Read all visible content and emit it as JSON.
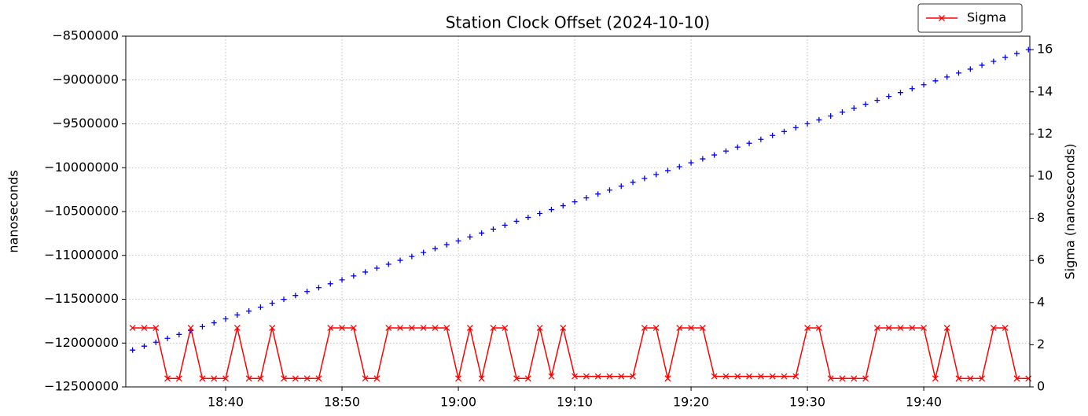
{
  "chart_data": {
    "type": "line",
    "title": "Station Clock Offset (2024-10-10)",
    "ylabel": "nanoseconds",
    "y2label": "Sigma (nanoseconds)",
    "x": [
      "18:32",
      "18:33",
      "18:34",
      "18:35",
      "18:36",
      "18:37",
      "18:38",
      "18:39",
      "18:40",
      "18:41",
      "18:42",
      "18:43",
      "18:44",
      "18:45",
      "18:46",
      "18:47",
      "18:48",
      "18:49",
      "18:50",
      "18:51",
      "18:52",
      "18:53",
      "18:54",
      "18:55",
      "18:56",
      "18:57",
      "18:58",
      "18:59",
      "19:00",
      "19:01",
      "19:02",
      "19:03",
      "19:04",
      "19:05",
      "19:06",
      "19:07",
      "19:08",
      "19:09",
      "19:10",
      "19:11",
      "19:12",
      "19:13",
      "19:14",
      "19:15",
      "19:16",
      "19:17",
      "19:18",
      "19:19",
      "19:20",
      "19:21",
      "19:22",
      "19:23",
      "19:24",
      "19:25",
      "19:26",
      "19:27",
      "19:28",
      "19:29",
      "19:30",
      "19:31",
      "19:32",
      "19:33",
      "19:34",
      "19:35",
      "19:36",
      "19:37",
      "19:38",
      "19:39",
      "19:40",
      "19:41",
      "19:42",
      "19:43",
      "19:44",
      "19:45",
      "19:46",
      "19:47",
      "19:48",
      "19:49"
    ],
    "series": [
      {
        "color": "#0000ff",
        "marker": "+",
        "line": false,
        "axis": "y",
        "values": [
          -12080000,
          -12035500,
          -11991000,
          -11946500,
          -11902000,
          -11857500,
          -11813000,
          -11768500,
          -11724000,
          -11679500,
          -11635000,
          -11590500,
          -11546000,
          -11501500,
          -11457000,
          -11412500,
          -11368000,
          -11323500,
          -11279000,
          -11234500,
          -11190000,
          -11145500,
          -11101000,
          -11056500,
          -11012000,
          -10967500,
          -10923000,
          -10878500,
          -10834000,
          -10789500,
          -10745000,
          -10700500,
          -10656000,
          -10611500,
          -10567000,
          -10522500,
          -10478000,
          -10433500,
          -10389000,
          -10344500,
          -10300000,
          -10255500,
          -10211000,
          -10166500,
          -10122000,
          -10077500,
          -10033000,
          -9988500,
          -9944000,
          -9899500,
          -9855000,
          -9810500,
          -9766000,
          -9721500,
          -9677000,
          -9632500,
          -9588000,
          -9543500,
          -9499000,
          -9454500,
          -9410000,
          -9365500,
          -9321000,
          -9276500,
          -9232000,
          -9187500,
          -9143000,
          -9098500,
          -9054000,
          -9009500,
          -8965000,
          -8920500,
          -8876000,
          -8831500,
          -8787000,
          -8742500,
          -8698000,
          -8653500
        ]
      },
      {
        "name": "Sigma",
        "color": "#ff0000",
        "marker": "x",
        "line": true,
        "axis": "y2",
        "values": [
          2.8,
          2.8,
          2.8,
          0.4,
          0.4,
          2.8,
          0.4,
          0.4,
          0.4,
          2.8,
          0.4,
          0.4,
          2.8,
          0.4,
          0.4,
          0.4,
          0.4,
          2.8,
          2.8,
          2.8,
          0.4,
          0.4,
          2.8,
          2.8,
          2.8,
          2.8,
          2.8,
          2.8,
          0.4,
          2.8,
          0.4,
          2.8,
          2.8,
          0.4,
          0.4,
          2.8,
          0.5,
          2.8,
          0.5,
          0.5,
          0.5,
          0.5,
          0.5,
          0.5,
          2.8,
          2.8,
          0.4,
          2.8,
          2.8,
          2.8,
          0.5,
          0.5,
          0.5,
          0.5,
          0.5,
          0.5,
          0.5,
          0.5,
          2.8,
          2.8,
          0.4,
          0.4,
          0.4,
          0.4,
          2.8,
          2.8,
          2.8,
          2.8,
          2.8,
          0.4,
          2.8,
          0.4,
          0.4,
          0.4,
          2.8,
          2.8,
          0.4,
          0.4
        ]
      }
    ],
    "xlim": [
      "18:31:25",
      "19:49:07"
    ],
    "xticks": [
      "18:40",
      "18:50",
      "19:00",
      "19:10",
      "19:20",
      "19:30",
      "19:40"
    ],
    "ylim": [
      -12500000,
      -8500000
    ],
    "yticks": [
      {
        "value": -12500000,
        "label": "−12500000"
      },
      {
        "value": -12000000,
        "label": "−12000000"
      },
      {
        "value": -11500000,
        "label": "−11500000"
      },
      {
        "value": -11000000,
        "label": "−11000000"
      },
      {
        "value": -10500000,
        "label": "−10500000"
      },
      {
        "value": -10000000,
        "label": "−10000000"
      },
      {
        "value": -9500000,
        "label": "−9500000"
      },
      {
        "value": -9000000,
        "label": "−9000000"
      },
      {
        "value": -8500000,
        "label": "−8500000"
      }
    ],
    "y2lim": [
      0,
      16.64
    ],
    "y2ticks": [
      0,
      2,
      4,
      6,
      8,
      10,
      12,
      14,
      16
    ],
    "grid": true,
    "legend": "upper right"
  }
}
